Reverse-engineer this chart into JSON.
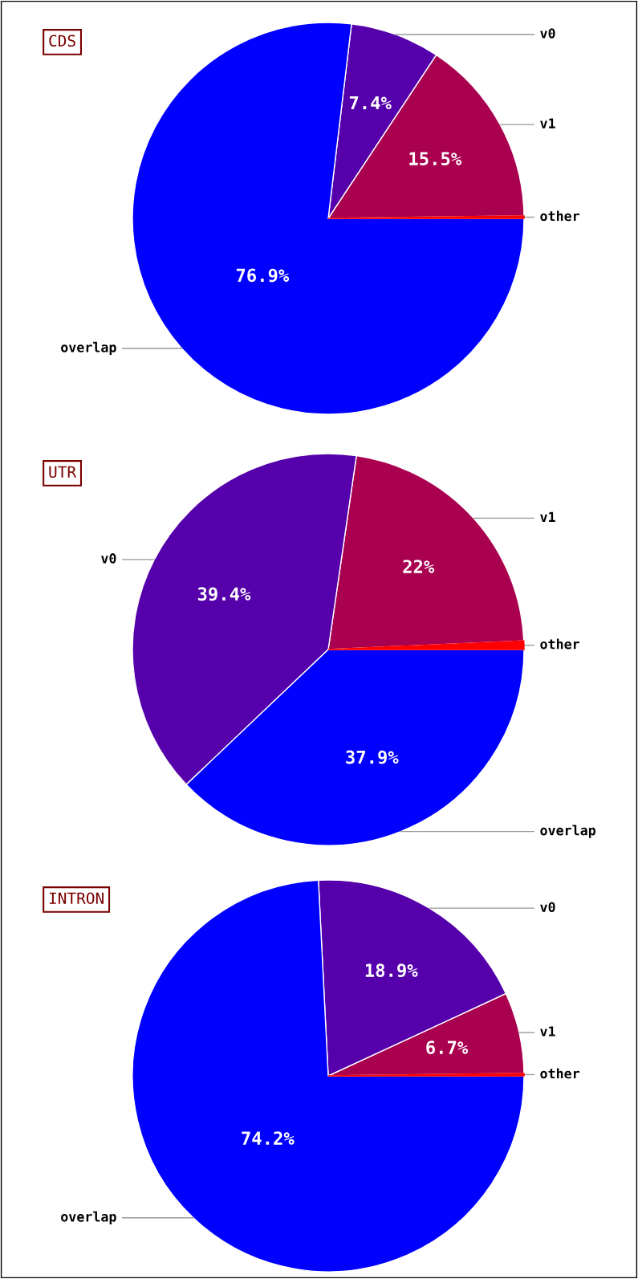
{
  "chart_data": [
    {
      "type": "pie",
      "title": "CDS",
      "categories": [
        "other",
        "v1",
        "v0",
        "overlap"
      ],
      "values": [
        0.2,
        15.5,
        7.4,
        76.9
      ],
      "colors": [
        "#ff0000",
        "#aa0050",
        "#5500aa",
        "#0000ff"
      ],
      "value_labels": [
        null,
        "15.5%",
        "7.4%",
        "76.9%"
      ]
    },
    {
      "type": "pie",
      "title": "UTR",
      "categories": [
        "other",
        "v1",
        "v0",
        "overlap"
      ],
      "values": [
        0.7,
        22,
        39.4,
        37.9
      ],
      "colors": [
        "#ff0000",
        "#aa0050",
        "#5500aa",
        "#0000ff"
      ],
      "value_labels": [
        null,
        "22%",
        "39.4%",
        "37.9%"
      ]
    },
    {
      "type": "pie",
      "title": "INTRON",
      "categories": [
        "other",
        "v1",
        "v0",
        "overlap"
      ],
      "values": [
        0.2,
        6.7,
        18.9,
        74.2
      ],
      "colors": [
        "#ff0000",
        "#aa0050",
        "#5500aa",
        "#0000ff"
      ],
      "value_labels": [
        null,
        "6.7%",
        "18.9%",
        "74.2%"
      ]
    }
  ]
}
